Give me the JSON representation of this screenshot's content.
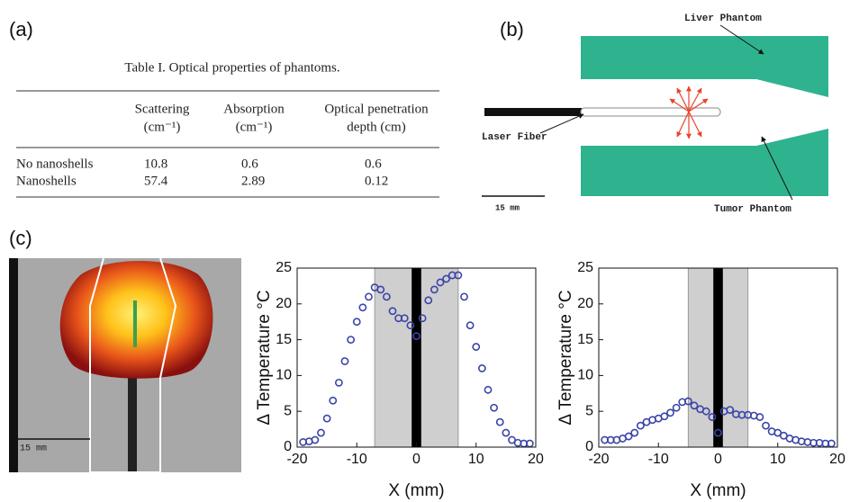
{
  "panel_labels": [
    "(a)",
    "(b)",
    "(c)"
  ],
  "table": {
    "caption": "Table I. Optical properties of phantoms.",
    "header": [
      [
        "Scattering",
        "(cm⁻¹)"
      ],
      [
        "Absorption",
        "(cm⁻¹)"
      ],
      [
        "Optical penetration",
        "depth (cm)"
      ]
    ],
    "rows": [
      [
        "No nanoshells",
        10.8,
        0.6,
        0.6
      ],
      [
        "Nanoshells",
        57.4,
        2.89,
        0.12
      ]
    ]
  },
  "diagram": {
    "liver_label": "Liver Phantom",
    "fiber_label": "Laser Fiber",
    "tumor_label": "Tumor Phantom",
    "scale_label": "15 mm"
  },
  "image": {
    "scale_label": "15 mm"
  },
  "chart_data": [
    {
      "type": "scatter",
      "xlabel": "X (mm)",
      "ylabel": "Δ Temperature °C",
      "color": "#3b44a8",
      "bands": [
        {
          "range": [
            -7,
            7
          ],
          "color": "#cfcfcf"
        },
        {
          "range": [
            -0.8,
            0.8
          ],
          "color": "#000000"
        }
      ],
      "x": [
        -19,
        -18,
        -17,
        -16,
        -15,
        -14,
        -13,
        -12,
        -11,
        -10,
        -9,
        -8,
        -7,
        -6,
        -5,
        -4,
        -3,
        -2,
        -1,
        0,
        1,
        2,
        3,
        4,
        5,
        6,
        7,
        8,
        9,
        10,
        11,
        12,
        13,
        14,
        15,
        16,
        17,
        18,
        19
      ],
      "values": [
        0.7,
        0.8,
        1,
        2,
        4,
        6.5,
        9,
        12,
        15,
        17.5,
        19.5,
        21,
        22.3,
        22,
        21,
        19,
        18,
        18,
        17,
        15.5,
        18,
        20.5,
        22,
        23,
        23.5,
        24,
        24,
        21,
        17,
        14,
        11,
        8,
        5.5,
        3.5,
        2,
        1,
        0.6,
        0.5,
        0.5
      ],
      "xlim": [
        -20,
        20
      ],
      "ylim": [
        0,
        25
      ],
      "xticks": [
        -20,
        -10,
        0,
        10,
        20
      ],
      "yticks": [
        0,
        5,
        10,
        15,
        20,
        25
      ]
    },
    {
      "type": "scatter",
      "xlabel": "X (mm)",
      "ylabel": "Δ Temperature °C",
      "color": "#3b44a8",
      "bands": [
        {
          "range": [
            -5,
            5
          ],
          "color": "#cfcfcf"
        },
        {
          "range": [
            -0.8,
            0.8
          ],
          "color": "#000000"
        }
      ],
      "x": [
        -19,
        -18,
        -17,
        -16,
        -15,
        -14,
        -13,
        -12,
        -11,
        -10,
        -9,
        -8,
        -7,
        -6,
        -5,
        -4,
        -3,
        -2,
        -1,
        0,
        1,
        2,
        3,
        4,
        5,
        6,
        7,
        8,
        9,
        10,
        11,
        12,
        13,
        14,
        15,
        16,
        17,
        18,
        19
      ],
      "values": [
        1,
        1,
        1,
        1.2,
        1.5,
        2,
        3,
        3.5,
        3.8,
        4,
        4.3,
        4.8,
        5.5,
        6.3,
        6.4,
        5.8,
        5.3,
        5,
        4.2,
        2,
        5,
        5.2,
        4.6,
        4.5,
        4.5,
        4.4,
        4.2,
        3,
        2.2,
        2,
        1.6,
        1.2,
        1,
        0.8,
        0.7,
        0.6,
        0.6,
        0.5,
        0.5
      ],
      "xlim": [
        -20,
        20
      ],
      "ylim": [
        0,
        25
      ],
      "xticks": [
        -20,
        -10,
        0,
        10,
        20
      ],
      "yticks": [
        0,
        5,
        10,
        15,
        20,
        25
      ]
    }
  ]
}
